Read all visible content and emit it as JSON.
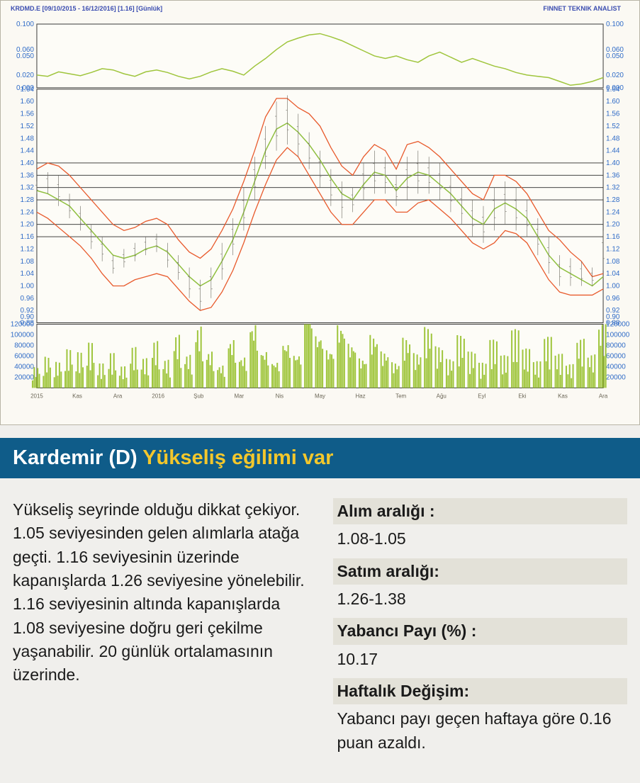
{
  "chart": {
    "title_left": "KRDMD.E [09/10/2015 - 16/12/2016] [1.16] [Günlük]",
    "title_right": "FINNET TEKNIK ANALIST",
    "background_color": "#fdfcf7",
    "border_color": "#3a3a3a",
    "label_color": "#2f6bc7",
    "oscillator_color": "#9fc53c",
    "band_color": "#e85a2c",
    "midline_color": "#8fbf3f",
    "pricebar_color": "#6a685f",
    "volume_color": "#9fc53c",
    "horizontal_line_color": "#2a2a2a",
    "top_panel": {
      "ylim": [
        0.0,
        0.1
      ],
      "ytick_step": 0.02,
      "yticks": [
        0.0,
        0.02,
        0.05,
        0.06,
        0.1
      ],
      "values": [
        0.02,
        0.018,
        0.025,
        0.022,
        0.019,
        0.024,
        0.03,
        0.028,
        0.022,
        0.018,
        0.025,
        0.028,
        0.024,
        0.018,
        0.014,
        0.018,
        0.025,
        0.03,
        0.026,
        0.02,
        0.034,
        0.046,
        0.06,
        0.072,
        0.078,
        0.083,
        0.085,
        0.08,
        0.074,
        0.066,
        0.058,
        0.05,
        0.046,
        0.05,
        0.044,
        0.04,
        0.05,
        0.056,
        0.048,
        0.04,
        0.046,
        0.04,
        0.034,
        0.03,
        0.024,
        0.02,
        0.018,
        0.016,
        0.01,
        0.004,
        0.006,
        0.01,
        0.016
      ]
    },
    "price_panel": {
      "ylim": [
        0.88,
        1.64
      ],
      "ytick_step": 0.04,
      "yticks": [
        0.88,
        0.9,
        0.92,
        0.96,
        1.0,
        1.04,
        1.08,
        1.12,
        1.16,
        1.2,
        1.24,
        1.28,
        1.32,
        1.36,
        1.4,
        1.44,
        1.48,
        1.52,
        1.56,
        1.6,
        1.64
      ],
      "horizontal_lines": [
        1.16,
        1.2,
        1.28,
        1.32,
        1.36,
        1.4
      ],
      "upper_band": [
        1.38,
        1.4,
        1.39,
        1.36,
        1.32,
        1.28,
        1.24,
        1.2,
        1.18,
        1.19,
        1.21,
        1.22,
        1.2,
        1.15,
        1.11,
        1.09,
        1.12,
        1.18,
        1.25,
        1.34,
        1.44,
        1.55,
        1.61,
        1.61,
        1.58,
        1.56,
        1.52,
        1.45,
        1.39,
        1.36,
        1.42,
        1.46,
        1.44,
        1.38,
        1.46,
        1.47,
        1.45,
        1.42,
        1.38,
        1.34,
        1.3,
        1.28,
        1.36,
        1.36,
        1.34,
        1.3,
        1.24,
        1.18,
        1.15,
        1.11,
        1.08,
        1.03,
        1.04
      ],
      "mid_band": [
        1.31,
        1.3,
        1.28,
        1.26,
        1.22,
        1.18,
        1.14,
        1.1,
        1.09,
        1.1,
        1.12,
        1.13,
        1.11,
        1.07,
        1.03,
        1.0,
        1.02,
        1.08,
        1.15,
        1.24,
        1.34,
        1.44,
        1.51,
        1.53,
        1.5,
        1.46,
        1.41,
        1.35,
        1.3,
        1.28,
        1.33,
        1.37,
        1.36,
        1.31,
        1.35,
        1.37,
        1.36,
        1.33,
        1.3,
        1.26,
        1.22,
        1.2,
        1.25,
        1.27,
        1.25,
        1.22,
        1.16,
        1.1,
        1.06,
        1.04,
        1.02,
        1.0,
        1.03
      ],
      "lower_band": [
        1.24,
        1.22,
        1.19,
        1.16,
        1.13,
        1.09,
        1.04,
        1.0,
        1.0,
        1.02,
        1.03,
        1.04,
        1.03,
        0.99,
        0.95,
        0.92,
        0.93,
        0.98,
        1.05,
        1.14,
        1.24,
        1.33,
        1.41,
        1.45,
        1.42,
        1.36,
        1.3,
        1.24,
        1.2,
        1.2,
        1.24,
        1.28,
        1.28,
        1.24,
        1.24,
        1.27,
        1.28,
        1.25,
        1.22,
        1.18,
        1.14,
        1.12,
        1.14,
        1.18,
        1.17,
        1.14,
        1.08,
        1.02,
        0.98,
        0.97,
        0.97,
        0.97,
        0.99
      ],
      "price": [
        {
          "h": 1.34,
          "l": 1.3
        },
        {
          "h": 1.37,
          "l": 1.3
        },
        {
          "h": 1.36,
          "l": 1.26
        },
        {
          "h": 1.3,
          "l": 1.22
        },
        {
          "h": 1.26,
          "l": 1.18
        },
        {
          "h": 1.2,
          "l": 1.12
        },
        {
          "h": 1.16,
          "l": 1.08
        },
        {
          "h": 1.1,
          "l": 1.04
        },
        {
          "h": 1.12,
          "l": 1.06
        },
        {
          "h": 1.14,
          "l": 1.08
        },
        {
          "h": 1.16,
          "l": 1.1
        },
        {
          "h": 1.17,
          "l": 1.11
        },
        {
          "h": 1.14,
          "l": 1.06
        },
        {
          "h": 1.1,
          "l": 1.02
        },
        {
          "h": 1.06,
          "l": 0.96
        },
        {
          "h": 1.02,
          "l": 0.92
        },
        {
          "h": 1.06,
          "l": 0.96
        },
        {
          "h": 1.14,
          "l": 1.02
        },
        {
          "h": 1.22,
          "l": 1.1
        },
        {
          "h": 1.32,
          "l": 1.18
        },
        {
          "h": 1.42,
          "l": 1.28
        },
        {
          "h": 1.52,
          "l": 1.38
        },
        {
          "h": 1.6,
          "l": 1.44
        },
        {
          "h": 1.62,
          "l": 1.46
        },
        {
          "h": 1.56,
          "l": 1.42
        },
        {
          "h": 1.5,
          "l": 1.38
        },
        {
          "h": 1.44,
          "l": 1.32
        },
        {
          "h": 1.38,
          "l": 1.26
        },
        {
          "h": 1.34,
          "l": 1.22
        },
        {
          "h": 1.32,
          "l": 1.24
        },
        {
          "h": 1.4,
          "l": 1.28
        },
        {
          "h": 1.44,
          "l": 1.3
        },
        {
          "h": 1.42,
          "l": 1.3
        },
        {
          "h": 1.36,
          "l": 1.26
        },
        {
          "h": 1.42,
          "l": 1.28
        },
        {
          "h": 1.44,
          "l": 1.3
        },
        {
          "h": 1.42,
          "l": 1.3
        },
        {
          "h": 1.4,
          "l": 1.28
        },
        {
          "h": 1.36,
          "l": 1.24
        },
        {
          "h": 1.32,
          "l": 1.2
        },
        {
          "h": 1.28,
          "l": 1.16
        },
        {
          "h": 1.26,
          "l": 1.14
        },
        {
          "h": 1.32,
          "l": 1.18
        },
        {
          "h": 1.34,
          "l": 1.2
        },
        {
          "h": 1.32,
          "l": 1.18
        },
        {
          "h": 1.28,
          "l": 1.16
        },
        {
          "h": 1.22,
          "l": 1.1
        },
        {
          "h": 1.16,
          "l": 1.04
        },
        {
          "h": 1.1,
          "l": 1.0
        },
        {
          "h": 1.09,
          "l": 1.0
        },
        {
          "h": 1.08,
          "l": 1.0
        },
        {
          "h": 1.06,
          "l": 1.0
        },
        {
          "h": 1.18,
          "l": 1.05
        }
      ]
    },
    "volume_panel": {
      "ylim": [
        0,
        120000
      ],
      "yticks": [
        0,
        20000,
        40000,
        60000,
        80000,
        100000,
        120000
      ],
      "values": [
        28000,
        42000,
        35000,
        52000,
        48000,
        61000,
        33000,
        47000,
        29000,
        55000,
        40000,
        63000,
        38000,
        72000,
        45000,
        84000,
        50000,
        31000,
        67000,
        43000,
        90000,
        52000,
        37000,
        64000,
        48000,
        118000,
        75000,
        54000,
        89000,
        62000,
        41000,
        73000,
        50000,
        35000,
        68000,
        47000,
        82000,
        56000,
        39000,
        71000,
        49000,
        34000,
        65000,
        44000,
        79000,
        53000,
        36000,
        69000,
        46000,
        32000,
        66000,
        45000,
        88000
      ]
    },
    "x_labels": [
      "2015",
      "Kas",
      "Ara",
      "2016",
      "Şub",
      "Mar",
      "Nis",
      "May",
      "Haz",
      "Tem",
      "Ağu",
      "Eyl",
      "Eki",
      "Kas",
      "Ara"
    ]
  },
  "header": {
    "main": "Kardemir (D) ",
    "sub": "Yükseliş eğilimi var"
  },
  "analysis": {
    "text": "Yükseliş seyrinde olduğu dikkat çekiyor. 1.05 seviyesinden gelen alımlarla atağa geçti. 1.16 seviyesinin üzerinde kapanışlarda 1.26 seviyesine yönelebilir. 1.16 seviyesinin altında kapanışlarda 1.08 seviyesine doğru geri çekilme yaşanabilir. 20 günlük ortalamasının üzerinde."
  },
  "metrics": {
    "buy_range_label": "Alım aralığı :",
    "buy_range_value": "1.08-1.05",
    "sell_range_label": "Satım aralığı:",
    "sell_range_value": "1.26-1.38",
    "foreign_share_label": "Yabancı Payı (%) :",
    "foreign_share_value": "10.17",
    "weekly_change_label": "Haftalık Değişim:",
    "weekly_change_value": "Yabancı payı geçen haftaya göre 0.16 puan azaldı."
  }
}
